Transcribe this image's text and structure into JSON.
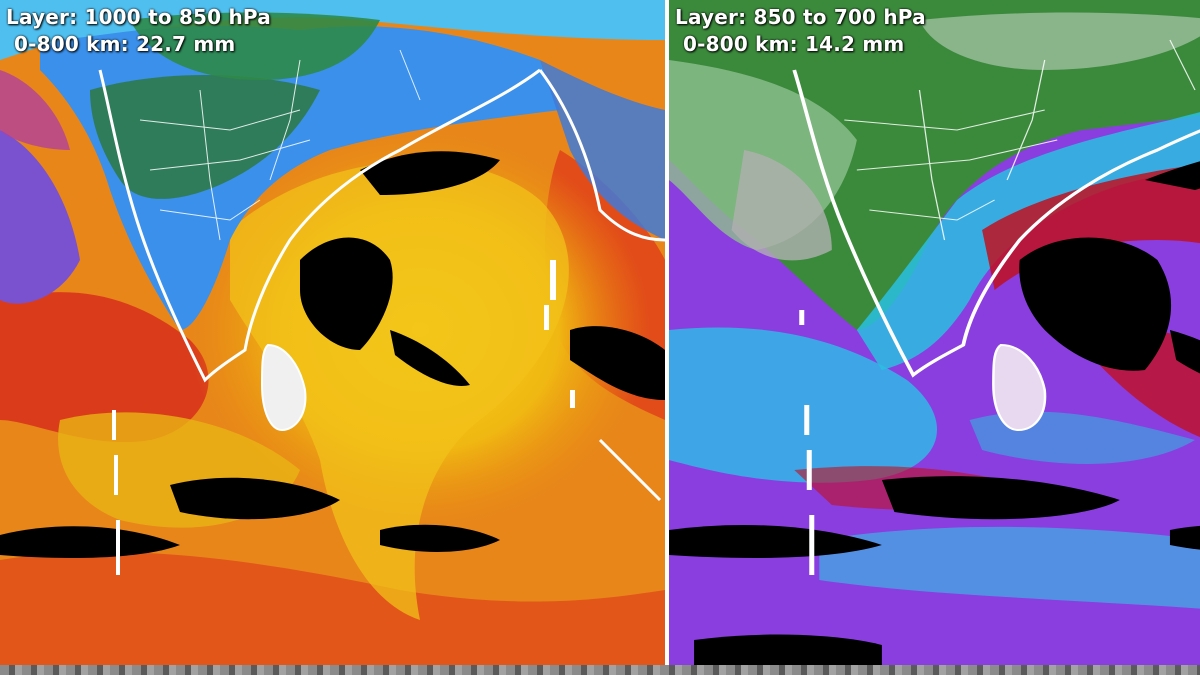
{
  "panels": [
    {
      "layer_label": "Layer: 1000 to 850 hPa",
      "stat_label": "0-800 km: 22.7 mm",
      "colors": {
        "ocean": "#ea8a1c",
        "moist": "#f0c40a",
        "dry": "#000000",
        "land_low": "#4aa0ff",
        "land_high": "#1e6a34",
        "purple": "#7a52d0",
        "red": "#d8281e",
        "outline": "#ffffff"
      }
    },
    {
      "layer_label": "Layer: 850 to 700 hPa",
      "stat_label": "0-800 km: 14.2 mm",
      "colors": {
        "ocean": "#8a3ee0",
        "moist": "#c01020",
        "dry": "#000000",
        "land_low": "#2fc8e6",
        "land_high": "#3b8a3c",
        "grey": "#a8a8a8",
        "outline": "#ffffff"
      }
    }
  ]
}
